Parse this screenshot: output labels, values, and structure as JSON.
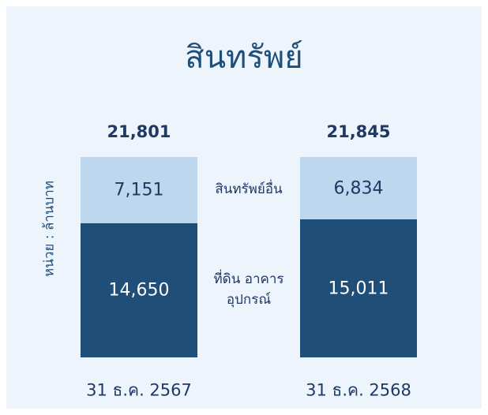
{
  "chart_data": {
    "type": "stacked_bar",
    "title": "สินทรัพย์",
    "y_label": "หน่วย : ล้านบาท",
    "categories": [
      "31 ธ.ค. 2567",
      "31 ธ.ค. 2568"
    ],
    "series": [
      {
        "name": "ที่ดิน อาคาร\nอุปกรณ์",
        "color": "#1f4e79",
        "values": [
          14650,
          15011
        ],
        "value_labels": [
          "14,650",
          "15,011"
        ]
      },
      {
        "name": "สินทรัพย์อื่น",
        "color": "#bdd7ee",
        "values": [
          7151,
          6834
        ],
        "value_labels": [
          "7,151",
          "6,834"
        ]
      }
    ],
    "totals": [
      21801,
      21845
    ],
    "total_labels": [
      "21,801",
      "21,845"
    ],
    "ylim": [
      0,
      22000
    ]
  }
}
